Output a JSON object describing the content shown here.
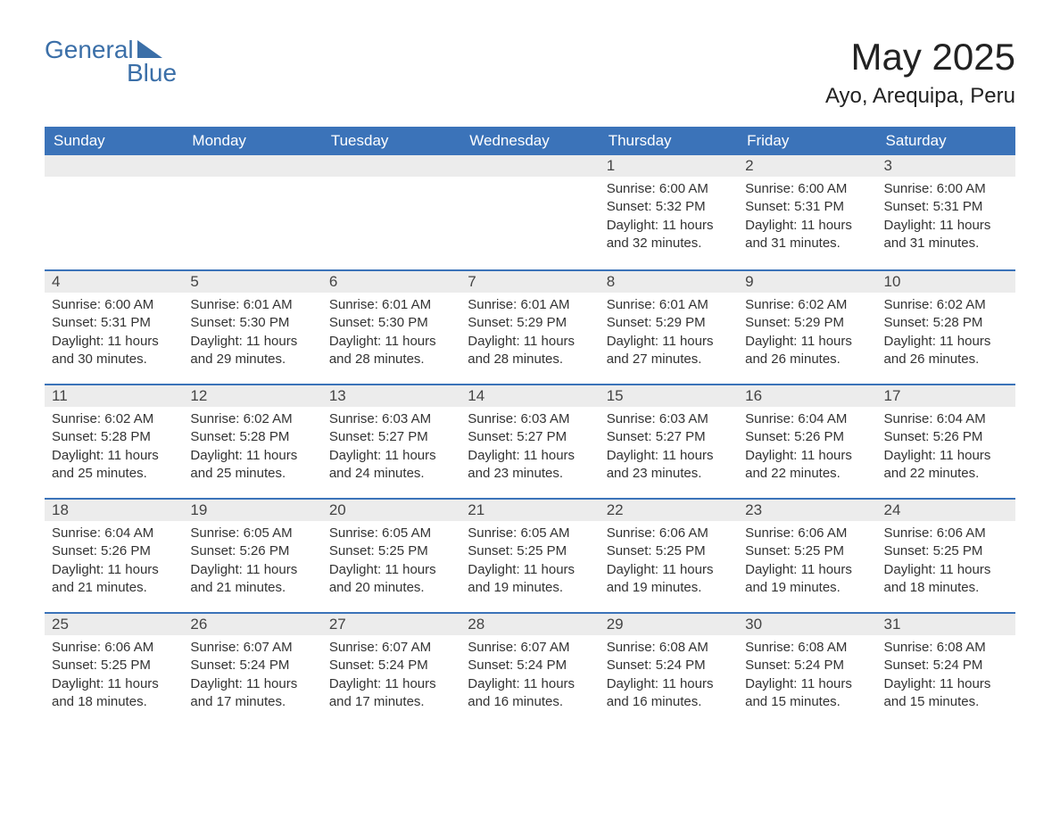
{
  "logo": {
    "text1": "General",
    "text2": "Blue"
  },
  "title": "May 2025",
  "location": "Ayo, Arequipa, Peru",
  "colors": {
    "header_bg": "#3b73b9",
    "header_text": "#ffffff",
    "day_bg": "#ececec",
    "accent": "#3b6fa8",
    "text": "#333333",
    "page_bg": "#ffffff"
  },
  "typography": {
    "title_fontsize": 42,
    "location_fontsize": 24,
    "header_fontsize": 17,
    "daynum_fontsize": 17,
    "body_fontsize": 15
  },
  "weekdays": [
    "Sunday",
    "Monday",
    "Tuesday",
    "Wednesday",
    "Thursday",
    "Friday",
    "Saturday"
  ],
  "labels": {
    "sunrise": "Sunrise:",
    "sunset": "Sunset:",
    "daylight": "Daylight:"
  },
  "grid": [
    [
      null,
      null,
      null,
      null,
      {
        "n": "1",
        "sunrise": "6:00 AM",
        "sunset": "5:32 PM",
        "daylight": "11 hours and 32 minutes."
      },
      {
        "n": "2",
        "sunrise": "6:00 AM",
        "sunset": "5:31 PM",
        "daylight": "11 hours and 31 minutes."
      },
      {
        "n": "3",
        "sunrise": "6:00 AM",
        "sunset": "5:31 PM",
        "daylight": "11 hours and 31 minutes."
      }
    ],
    [
      {
        "n": "4",
        "sunrise": "6:00 AM",
        "sunset": "5:31 PM",
        "daylight": "11 hours and 30 minutes."
      },
      {
        "n": "5",
        "sunrise": "6:01 AM",
        "sunset": "5:30 PM",
        "daylight": "11 hours and 29 minutes."
      },
      {
        "n": "6",
        "sunrise": "6:01 AM",
        "sunset": "5:30 PM",
        "daylight": "11 hours and 28 minutes."
      },
      {
        "n": "7",
        "sunrise": "6:01 AM",
        "sunset": "5:29 PM",
        "daylight": "11 hours and 28 minutes."
      },
      {
        "n": "8",
        "sunrise": "6:01 AM",
        "sunset": "5:29 PM",
        "daylight": "11 hours and 27 minutes."
      },
      {
        "n": "9",
        "sunrise": "6:02 AM",
        "sunset": "5:29 PM",
        "daylight": "11 hours and 26 minutes."
      },
      {
        "n": "10",
        "sunrise": "6:02 AM",
        "sunset": "5:28 PM",
        "daylight": "11 hours and 26 minutes."
      }
    ],
    [
      {
        "n": "11",
        "sunrise": "6:02 AM",
        "sunset": "5:28 PM",
        "daylight": "11 hours and 25 minutes."
      },
      {
        "n": "12",
        "sunrise": "6:02 AM",
        "sunset": "5:28 PM",
        "daylight": "11 hours and 25 minutes."
      },
      {
        "n": "13",
        "sunrise": "6:03 AM",
        "sunset": "5:27 PM",
        "daylight": "11 hours and 24 minutes."
      },
      {
        "n": "14",
        "sunrise": "6:03 AM",
        "sunset": "5:27 PM",
        "daylight": "11 hours and 23 minutes."
      },
      {
        "n": "15",
        "sunrise": "6:03 AM",
        "sunset": "5:27 PM",
        "daylight": "11 hours and 23 minutes."
      },
      {
        "n": "16",
        "sunrise": "6:04 AM",
        "sunset": "5:26 PM",
        "daylight": "11 hours and 22 minutes."
      },
      {
        "n": "17",
        "sunrise": "6:04 AM",
        "sunset": "5:26 PM",
        "daylight": "11 hours and 22 minutes."
      }
    ],
    [
      {
        "n": "18",
        "sunrise": "6:04 AM",
        "sunset": "5:26 PM",
        "daylight": "11 hours and 21 minutes."
      },
      {
        "n": "19",
        "sunrise": "6:05 AM",
        "sunset": "5:26 PM",
        "daylight": "11 hours and 21 minutes."
      },
      {
        "n": "20",
        "sunrise": "6:05 AM",
        "sunset": "5:25 PM",
        "daylight": "11 hours and 20 minutes."
      },
      {
        "n": "21",
        "sunrise": "6:05 AM",
        "sunset": "5:25 PM",
        "daylight": "11 hours and 19 minutes."
      },
      {
        "n": "22",
        "sunrise": "6:06 AM",
        "sunset": "5:25 PM",
        "daylight": "11 hours and 19 minutes."
      },
      {
        "n": "23",
        "sunrise": "6:06 AM",
        "sunset": "5:25 PM",
        "daylight": "11 hours and 19 minutes."
      },
      {
        "n": "24",
        "sunrise": "6:06 AM",
        "sunset": "5:25 PM",
        "daylight": "11 hours and 18 minutes."
      }
    ],
    [
      {
        "n": "25",
        "sunrise": "6:06 AM",
        "sunset": "5:25 PM",
        "daylight": "11 hours and 18 minutes."
      },
      {
        "n": "26",
        "sunrise": "6:07 AM",
        "sunset": "5:24 PM",
        "daylight": "11 hours and 17 minutes."
      },
      {
        "n": "27",
        "sunrise": "6:07 AM",
        "sunset": "5:24 PM",
        "daylight": "11 hours and 17 minutes."
      },
      {
        "n": "28",
        "sunrise": "6:07 AM",
        "sunset": "5:24 PM",
        "daylight": "11 hours and 16 minutes."
      },
      {
        "n": "29",
        "sunrise": "6:08 AM",
        "sunset": "5:24 PM",
        "daylight": "11 hours and 16 minutes."
      },
      {
        "n": "30",
        "sunrise": "6:08 AM",
        "sunset": "5:24 PM",
        "daylight": "11 hours and 15 minutes."
      },
      {
        "n": "31",
        "sunrise": "6:08 AM",
        "sunset": "5:24 PM",
        "daylight": "11 hours and 15 minutes."
      }
    ]
  ]
}
